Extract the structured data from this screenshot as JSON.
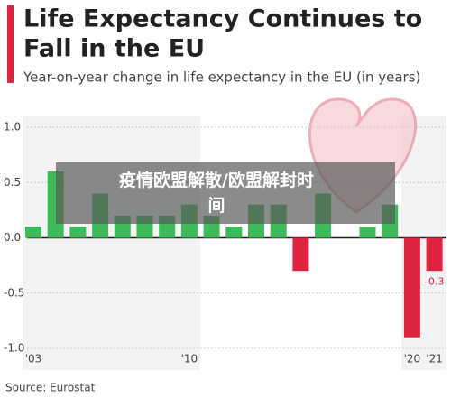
{
  "chart_data": {
    "type": "bar",
    "title": [
      "Life Expectancy Continues to",
      "Fall in the EU"
    ],
    "subtitle": "Year-on-year change in life expectancy in the EU (in years)",
    "source": "Source: Eurostat",
    "categories": [
      "'03",
      null,
      null,
      null,
      null,
      null,
      null,
      "'10",
      null,
      null,
      null,
      null,
      null,
      null,
      null,
      null,
      null,
      "'20",
      "'21"
    ],
    "values": [
      0.1,
      0.6,
      0.1,
      0.4,
      0.2,
      0.2,
      0.2,
      0.3,
      0.2,
      0.1,
      0.3,
      0.3,
      -0.3,
      0.4,
      0.0,
      0.1,
      0.3,
      -0.9,
      -0.3
    ],
    "value_labels": [
      null,
      null,
      null,
      null,
      null,
      null,
      null,
      null,
      null,
      null,
      null,
      null,
      null,
      null,
      null,
      null,
      null,
      null,
      "-0.3"
    ],
    "colors": {
      "positive": "#3dba5a",
      "negative": "#e0243f"
    },
    "ylim": [
      -1.0,
      1.0
    ],
    "yticks": [
      {
        "value": -1.0,
        "label": "-1.0"
      },
      -0.5,
      {
        "value": 0.0,
        "label": "0.0"
      },
      0.5,
      {
        "value": 1.0,
        "label": "1.0"
      }
    ],
    "grid": true
  },
  "overlay": {
    "text": "疫情欧盟解散/欧盟解封时间"
  }
}
